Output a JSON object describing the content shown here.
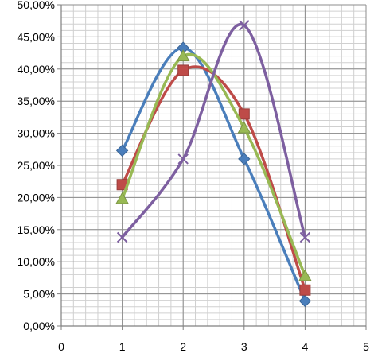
{
  "chart_data": {
    "type": "line",
    "smooth": true,
    "xlim": [
      0,
      5
    ],
    "ylim": [
      0,
      50
    ],
    "x_ticks": [
      0,
      1,
      2,
      3,
      4,
      5
    ],
    "y_ticks": [
      0,
      5,
      10,
      15,
      20,
      25,
      30,
      35,
      40,
      45,
      50
    ],
    "x_tick_labels": [
      "0",
      "1",
      "2",
      "3",
      "4",
      "5"
    ],
    "y_tick_labels": [
      "0,00%",
      "5,00%",
      "10,00%",
      "15,00%",
      "20,00%",
      "25,00%",
      "30,00%",
      "35,00%",
      "40,00%",
      "45,00%",
      "50,00%"
    ],
    "grid": {
      "major": true,
      "minor": true,
      "minor_step_x": 0.2,
      "minor_step_y": 1
    },
    "legend": "none",
    "x": [
      1,
      2,
      3,
      4
    ],
    "series": [
      {
        "values": [
          27.3,
          43.3,
          26.0,
          3.9
        ],
        "color": "#4a7ebb",
        "marker": "diamond"
      },
      {
        "values": [
          22.0,
          39.8,
          33.0,
          5.6
        ],
        "color": "#be4b48",
        "marker": "square"
      },
      {
        "values": [
          19.8,
          42.0,
          30.8,
          7.8
        ],
        "color": "#98b954",
        "marker": "triangle"
      },
      {
        "values": [
          13.8,
          26.0,
          46.8,
          13.8
        ],
        "color": "#7d5fa0",
        "marker": "x"
      }
    ]
  }
}
